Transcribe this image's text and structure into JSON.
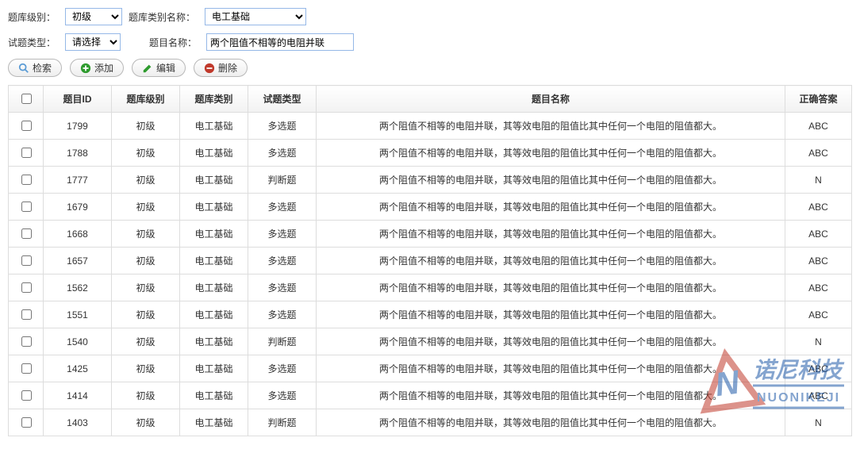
{
  "filters": {
    "levelLabel": "题库级别：",
    "levelValue": "初级",
    "categoryLabel": "题库类别名称：",
    "categoryValue": "电工基础",
    "qtypeLabel": "试题类型：",
    "qtypeValue": "请选择",
    "qnameLabel": "题目名称：",
    "qnameValue": "两个阻值不相等的电阻并联"
  },
  "buttons": {
    "search": "检索",
    "add": "添加",
    "edit": "编辑",
    "delete": "删除"
  },
  "colors": {
    "searchIcon": "#5a9bd5",
    "addIcon": "#2e9b2e",
    "editIcon": "#2e9b2e",
    "deleteIcon": "#c0392b",
    "headerBorder": "#dddddd",
    "inputBorder": "#95b8e7"
  },
  "table": {
    "headers": {
      "check": "",
      "id": "题目ID",
      "level": "题库级别",
      "category": "题库类别",
      "qtype": "试题类型",
      "name": "题目名称",
      "answer": "正确答案"
    },
    "rows": [
      {
        "id": "1799",
        "level": "初级",
        "category": "电工基础",
        "qtype": "多选题",
        "name": "两个阻值不相等的电阻并联，其等效电阻的阻值比其中任何一个电阻的阻值都大。",
        "answer": "ABC"
      },
      {
        "id": "1788",
        "level": "初级",
        "category": "电工基础",
        "qtype": "多选题",
        "name": "两个阻值不相等的电阻并联，其等效电阻的阻值比其中任何一个电阻的阻值都大。",
        "answer": "ABC"
      },
      {
        "id": "1777",
        "level": "初级",
        "category": "电工基础",
        "qtype": "判断题",
        "name": "两个阻值不相等的电阻并联，其等效电阻的阻值比其中任何一个电阻的阻值都大。",
        "answer": "N"
      },
      {
        "id": "1679",
        "level": "初级",
        "category": "电工基础",
        "qtype": "多选题",
        "name": "两个阻值不相等的电阻并联，其等效电阻的阻值比其中任何一个电阻的阻值都大。",
        "answer": "ABC"
      },
      {
        "id": "1668",
        "level": "初级",
        "category": "电工基础",
        "qtype": "多选题",
        "name": "两个阻值不相等的电阻并联，其等效电阻的阻值比其中任何一个电阻的阻值都大。",
        "answer": "ABC"
      },
      {
        "id": "1657",
        "level": "初级",
        "category": "电工基础",
        "qtype": "多选题",
        "name": "两个阻值不相等的电阻并联，其等效电阻的阻值比其中任何一个电阻的阻值都大。",
        "answer": "ABC"
      },
      {
        "id": "1562",
        "level": "初级",
        "category": "电工基础",
        "qtype": "多选题",
        "name": "两个阻值不相等的电阻并联，其等效电阻的阻值比其中任何一个电阻的阻值都大。",
        "answer": "ABC"
      },
      {
        "id": "1551",
        "level": "初级",
        "category": "电工基础",
        "qtype": "多选题",
        "name": "两个阻值不相等的电阻并联，其等效电阻的阻值比其中任何一个电阻的阻值都大。",
        "answer": "ABC"
      },
      {
        "id": "1540",
        "level": "初级",
        "category": "电工基础",
        "qtype": "判断题",
        "name": "两个阻值不相等的电阻并联，其等效电阻的阻值比其中任何一个电阻的阻值都大。",
        "answer": "N"
      },
      {
        "id": "1425",
        "level": "初级",
        "category": "电工基础",
        "qtype": "多选题",
        "name": "两个阻值不相等的电阻并联，其等效电阻的阻值比其中任何一个电阻的阻值都大。",
        "answer": "ABC"
      },
      {
        "id": "1414",
        "level": "初级",
        "category": "电工基础",
        "qtype": "多选题",
        "name": "两个阻值不相等的电阻并联，其等效电阻的阻值比其中任何一个电阻的阻值都大。",
        "answer": "ABC"
      },
      {
        "id": "1403",
        "level": "初级",
        "category": "电工基础",
        "qtype": "判断题",
        "name": "两个阻值不相等的电阻并联，其等效电阻的阻值比其中任何一个电阻的阻值都大。",
        "answer": "N"
      }
    ]
  },
  "watermark": {
    "text": "诺尼科技",
    "sub": "NUONIKEJI"
  }
}
